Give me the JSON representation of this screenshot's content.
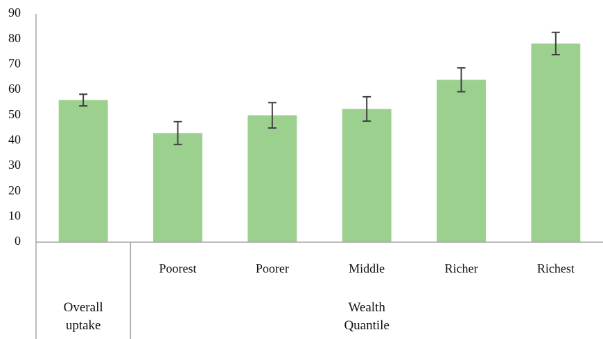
{
  "chart_data": {
    "type": "bar",
    "categories": [
      null,
      "Poorest",
      "Poorer",
      "Middle",
      "Richer",
      "Richest"
    ],
    "groups": [
      {
        "label": "Overall uptake",
        "span": 1
      },
      {
        "label": "Wealth Quantile",
        "span": 5
      }
    ],
    "values": [
      56,
      43,
      50,
      52.5,
      64,
      78.3
    ],
    "errors": [
      2.3,
      4.5,
      5,
      4.8,
      4.7,
      4.4
    ],
    "color": "#9bd08f",
    "error_color": "#404040",
    "ylim": [
      0,
      90
    ],
    "yticks": [
      0,
      10,
      20,
      30,
      40,
      50,
      60,
      70,
      80,
      90
    ],
    "grid": false
  }
}
